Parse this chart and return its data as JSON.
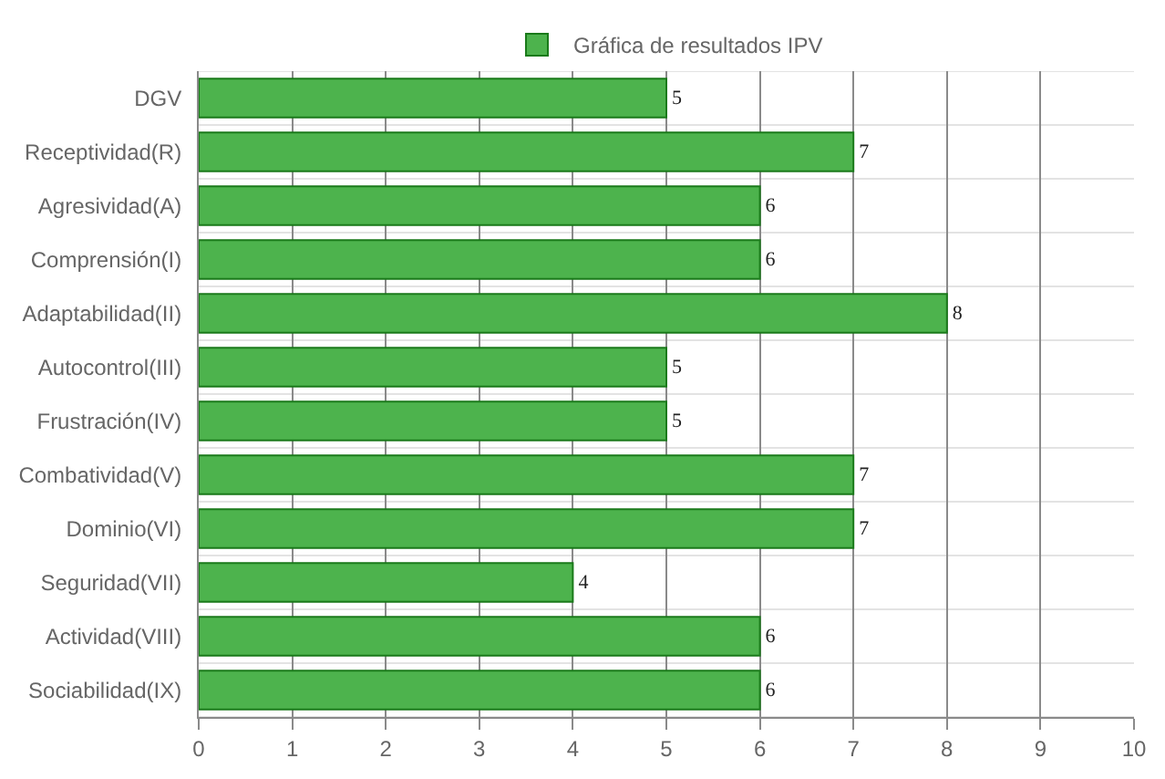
{
  "chart_data": {
    "type": "bar",
    "orientation": "horizontal",
    "categories": [
      "DGV",
      "Receptividad(R)",
      "Agresividad(A)",
      "Comprensión(I)",
      "Adaptabilidad(II)",
      "Autocontrol(III)",
      "Frustración(IV)",
      "Combatividad(V)",
      "Dominio(VI)",
      "Seguridad(VII)",
      "Actividad(VIII)",
      "Sociabilidad(IX)"
    ],
    "series": [
      {
        "name": "Gráfica de resultados IPV",
        "color": "#4db34d",
        "values": [
          5,
          7,
          6,
          6,
          8,
          5,
          5,
          7,
          7,
          4,
          6,
          6
        ]
      }
    ],
    "xlim": [
      0,
      10
    ],
    "xticks": [
      0,
      1,
      2,
      3,
      4,
      5,
      6,
      7,
      8,
      9,
      10
    ],
    "grid": true,
    "legend": "top",
    "data_labels": true
  }
}
